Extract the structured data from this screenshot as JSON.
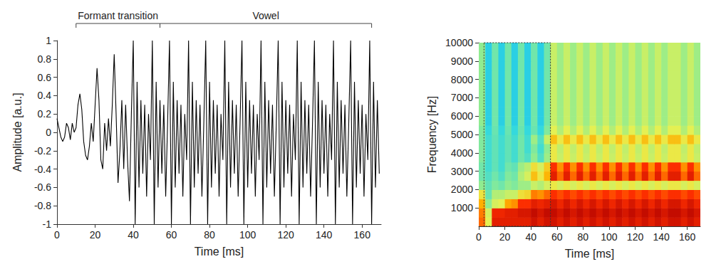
{
  "chart_data": [
    {
      "type": "line",
      "x_label": "Time [ms]",
      "y_label": "Amplitude [a.u.]",
      "color": "#000000",
      "grid": false,
      "xlim": [
        0,
        170
      ],
      "ylim": [
        -1,
        1
      ],
      "xticks": [
        0,
        20,
        40,
        60,
        80,
        100,
        120,
        140,
        160
      ],
      "yticks": [
        -1,
        -0.8,
        -0.6,
        -0.4,
        -0.2,
        0,
        0.2,
        0.4,
        0.6,
        0.8,
        1
      ],
      "annotations": [
        {
          "text": "Formant transition",
          "x": [
            10,
            54
          ]
        },
        {
          "text": "Vowel",
          "x": [
            54,
            165
          ]
        }
      ],
      "x": [
        0,
        1,
        2,
        3,
        4,
        5,
        6,
        7,
        8,
        9,
        10,
        11,
        12,
        13,
        14,
        15,
        16,
        17,
        18,
        19,
        20,
        21,
        22,
        23,
        24,
        25,
        26,
        27,
        28,
        29,
        30,
        31,
        32,
        33,
        34,
        35,
        36,
        37,
        38,
        39,
        40,
        41,
        42,
        43,
        44,
        45,
        46,
        47,
        48,
        49,
        50,
        51,
        52,
        53,
        54,
        55,
        56,
        57,
        58,
        59,
        60,
        61,
        62,
        63,
        64,
        65,
        66,
        67,
        68,
        69,
        70,
        71,
        72,
        73,
        74,
        75,
        76,
        77,
        78,
        79,
        80,
        81,
        82,
        83,
        84,
        85,
        86,
        87,
        88,
        89,
        90,
        91,
        92,
        93,
        94,
        95,
        96,
        97,
        98,
        99,
        100,
        101,
        102,
        103,
        104,
        105,
        106,
        107,
        108,
        109,
        110,
        111,
        112,
        113,
        114,
        115,
        116,
        117,
        118,
        119,
        120,
        121,
        122,
        123,
        124,
        125,
        126,
        127,
        128,
        129,
        130,
        131,
        132,
        133,
        134,
        135,
        136,
        137,
        138,
        139,
        140,
        141,
        142,
        143,
        144,
        145,
        146,
        147,
        148,
        149,
        150,
        151,
        152,
        153,
        154,
        155,
        156,
        157,
        158,
        159,
        160,
        161,
        162,
        163,
        164,
        165,
        166,
        167,
        168,
        169
      ],
      "values": [
        0.15,
        0.05,
        -0.05,
        -0.1,
        -0.05,
        0.1,
        0.05,
        -0.08,
        0.1,
        0,
        0.05,
        0.3,
        0.42,
        0.25,
        -0.1,
        -0.25,
        -0.3,
        -0.15,
        0.1,
        -0.1,
        0.3,
        0.7,
        0.35,
        -0.3,
        -0.4,
        0.1,
        -0.2,
        0.15,
        -0.15,
        0.3,
        0.85,
        0.2,
        -0.55,
        -0.2,
        0.35,
        -0.4,
        0.3,
        -0.3,
        -0.75,
        0.2,
        1,
        -1,
        0.55,
        -0.6,
        0.35,
        -0.45,
        0.3,
        -0.7,
        0.2,
        -0.3,
        1,
        -1,
        0.55,
        -0.6,
        0.35,
        -0.45,
        0.3,
        -0.7,
        0.1,
        1,
        -1,
        0.55,
        -0.6,
        0.35,
        -0.45,
        0.3,
        -0.7,
        0.2,
        -0.3,
        1,
        -1,
        0.55,
        -0.6,
        0.35,
        -0.45,
        0.3,
        -0.7,
        0.1,
        1,
        -1,
        0.55,
        -0.6,
        0.35,
        -0.45,
        0.3,
        -0.7,
        0.2,
        -0.3,
        1,
        -1,
        0.55,
        -0.6,
        0.35,
        -0.45,
        0.3,
        -0.7,
        0.1,
        1,
        -1,
        0.55,
        -0.6,
        0.35,
        -0.45,
        0.3,
        -0.7,
        0.2,
        -0.3,
        1,
        -1,
        0.55,
        -0.6,
        0.35,
        -0.45,
        0.3,
        -0.7,
        0.1,
        1,
        -1,
        0.55,
        -0.6,
        0.35,
        -0.45,
        0.3,
        -0.7,
        0.2,
        -0.3,
        1,
        -1,
        0.55,
        -0.6,
        0.35,
        -0.45,
        0.3,
        -0.7,
        0.1,
        1,
        -1,
        0.55,
        -0.6,
        0.35,
        -0.45,
        0.3,
        -0.7,
        0.2,
        -0.3,
        1,
        -1,
        0.55,
        -0.6,
        0.35,
        -0.45,
        0.3,
        -0.7,
        0.1,
        1,
        -1,
        0.55,
        -0.6,
        0.35,
        -0.45,
        0.3,
        -0.7,
        0.2,
        -0.3,
        1,
        -1,
        0.55,
        -0.6,
        0.35,
        -0.45
      ]
    },
    {
      "type": "heatmap",
      "x_label": "Time [ms]",
      "y_label": "Frequency [Hz]",
      "grid": false,
      "xlim": [
        0,
        170
      ],
      "ylim": [
        0,
        10000
      ],
      "xticks": [
        0,
        20,
        40,
        60,
        80,
        100,
        120,
        140,
        160
      ],
      "yticks": [
        1000,
        2000,
        3000,
        4000,
        5000,
        6000,
        7000,
        8000,
        9000,
        10000
      ],
      "box_x": [
        4,
        55
      ],
      "color_range": [
        0,
        100
      ],
      "time_bins": [
        0,
        5,
        10,
        15,
        20,
        25,
        30,
        35,
        40,
        45,
        50,
        55,
        60,
        65,
        70,
        75,
        80,
        85,
        90,
        95,
        100,
        105,
        110,
        115,
        120,
        125,
        130,
        135,
        140,
        145,
        150,
        155,
        160,
        165,
        170
      ],
      "freq_bins": [
        0,
        500,
        1000,
        1500,
        2000,
        2500,
        3000,
        3500,
        4000,
        4500,
        5000,
        5500,
        6000,
        6500,
        7000,
        7500,
        8000,
        8500,
        9000,
        9500,
        10000
      ],
      "cells": [
        [
          82,
          62,
          92,
          92,
          92,
          92,
          92,
          92,
          95,
          92,
          95,
          95,
          92,
          95,
          92,
          95,
          92,
          95,
          92,
          95,
          92,
          95,
          92,
          95,
          92,
          95,
          92,
          95,
          92,
          95,
          95,
          92,
          95,
          92
        ],
        [
          80,
          60,
          90,
          90,
          92,
          92,
          94,
          94,
          97,
          94,
          97,
          97,
          94,
          97,
          94,
          97,
          94,
          97,
          94,
          97,
          94,
          97,
          94,
          97,
          94,
          97,
          94,
          97,
          94,
          97,
          97,
          94,
          97,
          94
        ],
        [
          75,
          50,
          60,
          62,
          76,
          78,
          88,
          88,
          92,
          90,
          92,
          94,
          90,
          94,
          90,
          94,
          90,
          94,
          90,
          94,
          90,
          94,
          90,
          94,
          90,
          94,
          90,
          94,
          90,
          94,
          94,
          90,
          94,
          90
        ],
        [
          65,
          45,
          55,
          55,
          58,
          58,
          66,
          68,
          80,
          78,
          82,
          88,
          85,
          88,
          85,
          88,
          85,
          88,
          85,
          88,
          85,
          88,
          85,
          88,
          85,
          88,
          85,
          88,
          85,
          88,
          88,
          85,
          88,
          85
        ],
        [
          50,
          44,
          48,
          46,
          50,
          48,
          52,
          52,
          58,
          55,
          60,
          64,
          60,
          64,
          60,
          64,
          60,
          64,
          60,
          64,
          60,
          64,
          60,
          64,
          60,
          64,
          60,
          64,
          60,
          64,
          64,
          60,
          64,
          60
        ],
        [
          46,
          42,
          46,
          42,
          48,
          46,
          55,
          60,
          72,
          64,
          74,
          92,
          82,
          92,
          82,
          92,
          82,
          92,
          82,
          92,
          82,
          92,
          82,
          92,
          82,
          92,
          82,
          92,
          82,
          92,
          92,
          82,
          92,
          82
        ],
        [
          46,
          40,
          44,
          40,
          46,
          44,
          52,
          56,
          66,
          60,
          70,
          88,
          78,
          88,
          78,
          88,
          78,
          88,
          78,
          88,
          78,
          88,
          78,
          88,
          78,
          88,
          78,
          88,
          78,
          88,
          88,
          78,
          88,
          78
        ],
        [
          48,
          40,
          44,
          40,
          44,
          40,
          46,
          42,
          50,
          42,
          52,
          64,
          58,
          64,
          58,
          64,
          58,
          64,
          58,
          64,
          58,
          64,
          58,
          64,
          58,
          64,
          58,
          64,
          58,
          64,
          64,
          58,
          64,
          58
        ],
        [
          48,
          40,
          44,
          40,
          44,
          40,
          46,
          40,
          48,
          40,
          50,
          64,
          57,
          64,
          57,
          64,
          57,
          64,
          57,
          64,
          57,
          64,
          57,
          64,
          57,
          64,
          57,
          64,
          57,
          64,
          64,
          57,
          64,
          57
        ],
        [
          48,
          40,
          44,
          40,
          44,
          40,
          46,
          40,
          52,
          42,
          58,
          72,
          64,
          72,
          64,
          72,
          64,
          72,
          64,
          72,
          64,
          72,
          64,
          72,
          64,
          72,
          64,
          72,
          64,
          72,
          72,
          64,
          72,
          64
        ],
        [
          48,
          38,
          45,
          38,
          45,
          38,
          45,
          38,
          45,
          38,
          48,
          62,
          55,
          62,
          55,
          62,
          55,
          62,
          55,
          62,
          55,
          62,
          55,
          62,
          55,
          62,
          55,
          62,
          55,
          62,
          62,
          55,
          62,
          55
        ],
        [
          50,
          36,
          46,
          36,
          46,
          36,
          46,
          36,
          46,
          36,
          46,
          58,
          52,
          58,
          52,
          58,
          52,
          58,
          52,
          58,
          52,
          58,
          52,
          58,
          52,
          58,
          52,
          58,
          52,
          58,
          58,
          52,
          58,
          52
        ],
        [
          50,
          36,
          46,
          36,
          46,
          36,
          46,
          36,
          46,
          36,
          46,
          58,
          52,
          58,
          52,
          58,
          52,
          58,
          52,
          58,
          52,
          58,
          52,
          58,
          52,
          58,
          52,
          58,
          52,
          58,
          58,
          52,
          58,
          52
        ],
        [
          50,
          36,
          46,
          36,
          46,
          36,
          46,
          36,
          46,
          36,
          46,
          58,
          52,
          58,
          52,
          58,
          52,
          58,
          52,
          58,
          52,
          58,
          52,
          58,
          52,
          58,
          52,
          58,
          52,
          58,
          58,
          52,
          58,
          52
        ],
        [
          50,
          36,
          46,
          36,
          46,
          36,
          46,
          36,
          46,
          36,
          46,
          58,
          52,
          58,
          52,
          58,
          52,
          58,
          52,
          58,
          52,
          58,
          52,
          58,
          52,
          58,
          52,
          58,
          52,
          58,
          58,
          52,
          58,
          52
        ],
        [
          50,
          36,
          46,
          36,
          46,
          36,
          46,
          36,
          46,
          36,
          46,
          58,
          52,
          58,
          52,
          58,
          52,
          58,
          52,
          58,
          52,
          58,
          52,
          58,
          52,
          58,
          52,
          58,
          52,
          58,
          58,
          52,
          58,
          52
        ],
        [
          50,
          36,
          46,
          36,
          46,
          36,
          46,
          36,
          46,
          36,
          46,
          58,
          52,
          58,
          52,
          58,
          52,
          58,
          52,
          58,
          52,
          58,
          52,
          58,
          52,
          58,
          52,
          58,
          52,
          58,
          58,
          52,
          58,
          52
        ],
        [
          50,
          36,
          46,
          36,
          46,
          36,
          46,
          36,
          46,
          36,
          46,
          58,
          52,
          58,
          52,
          58,
          52,
          58,
          52,
          58,
          52,
          58,
          52,
          58,
          52,
          58,
          52,
          58,
          52,
          58,
          58,
          52,
          58,
          52
        ],
        [
          50,
          36,
          46,
          36,
          46,
          36,
          46,
          36,
          46,
          36,
          46,
          58,
          52,
          58,
          52,
          58,
          52,
          58,
          52,
          58,
          52,
          58,
          52,
          58,
          52,
          58,
          52,
          58,
          52,
          58,
          58,
          52,
          58,
          52
        ],
        [
          50,
          36,
          46,
          36,
          46,
          36,
          46,
          36,
          46,
          36,
          46,
          58,
          52,
          58,
          52,
          58,
          52,
          58,
          52,
          58,
          52,
          58,
          52,
          58,
          52,
          58,
          52,
          58,
          52,
          58,
          58,
          52,
          58,
          52
        ]
      ]
    }
  ]
}
